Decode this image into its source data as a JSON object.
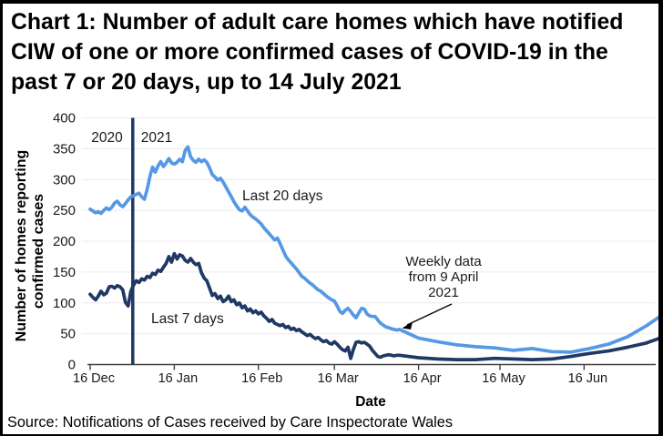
{
  "title": "Chart 1: Number of adult care homes which have notified CIW of one or more confirmed cases of COVID-19 in the past 7 or 20 days, up to 14 July 2021",
  "title_lines": [
    "Chart 1: Number of adult care homes which have notified",
    "CIW of one or more confirmed cases of COVID-19 in the",
    "past 7 or 20 days, up to 14 July 2021"
  ],
  "source": "Source: Notifications of Cases received by Care Inspectorate Wales",
  "chart_data": {
    "type": "line",
    "title": "Chart 1: Number of adult care homes which have notified CIW of one or more confirmed cases of COVID-19 in the past 7 or 20 days, up to 14 July 2021",
    "xlabel": "Date",
    "ylabel": "Number of homes reporting confirmed cases",
    "ylabel_lines": [
      "Number of homes reporting",
      "confirmed cases"
    ],
    "ylim": [
      0,
      400
    ],
    "y_ticks": [
      0,
      50,
      100,
      150,
      200,
      250,
      300,
      350,
      400
    ],
    "x_tick_labels": [
      "16 Dec",
      "16 Jan",
      "16 Feb",
      "16 Mar",
      "16 Apr",
      "16 May",
      "16 Jun"
    ],
    "x_tick_days": [
      0,
      31,
      62,
      90,
      121,
      151,
      182
    ],
    "x_range_days": 210,
    "x_start": "16 Dec 2020",
    "x_end": "14 Jul 2021",
    "grid": true,
    "year_divider_day": 15.7,
    "annotations": {
      "year_left": "2020",
      "year_right": "2021",
      "weekly_note_lines": [
        "Weekly data",
        "from 9 April",
        "2021"
      ]
    },
    "series": [
      {
        "name": "Last 20 days",
        "color": "#5598e5",
        "points": [
          [
            0,
            252
          ],
          [
            1,
            249
          ],
          [
            2,
            246
          ],
          [
            3,
            248
          ],
          [
            4,
            245
          ],
          [
            5,
            250
          ],
          [
            6,
            254
          ],
          [
            7,
            251
          ],
          [
            8,
            255
          ],
          [
            9,
            262
          ],
          [
            10,
            265
          ],
          [
            11,
            259
          ],
          [
            12,
            256
          ],
          [
            13,
            261
          ],
          [
            14,
            267
          ],
          [
            15,
            272
          ],
          [
            16,
            274
          ],
          [
            17,
            276
          ],
          [
            18,
            278
          ],
          [
            19,
            272
          ],
          [
            20,
            268
          ],
          [
            21,
            284
          ],
          [
            22,
            305
          ],
          [
            23,
            320
          ],
          [
            24,
            312
          ],
          [
            25,
            322
          ],
          [
            26,
            329
          ],
          [
            27,
            321
          ],
          [
            28,
            327
          ],
          [
            29,
            334
          ],
          [
            30,
            327
          ],
          [
            31,
            325
          ],
          [
            32,
            328
          ],
          [
            33,
            333
          ],
          [
            34,
            329
          ],
          [
            35,
            347
          ],
          [
            36,
            353
          ],
          [
            37,
            337
          ],
          [
            38,
            331
          ],
          [
            39,
            328
          ],
          [
            40,
            333
          ],
          [
            41,
            329
          ],
          [
            42,
            332
          ],
          [
            43,
            328
          ],
          [
            44,
            319
          ],
          [
            45,
            308
          ],
          [
            46,
            304
          ],
          [
            47,
            299
          ],
          [
            48,
            302
          ],
          [
            49,
            296
          ],
          [
            50,
            288
          ],
          [
            51,
            280
          ],
          [
            52,
            272
          ],
          [
            53,
            264
          ],
          [
            54,
            257
          ],
          [
            55,
            251
          ],
          [
            56,
            249
          ],
          [
            57,
            255
          ],
          [
            58,
            249
          ],
          [
            59,
            243
          ],
          [
            60,
            239
          ],
          [
            61,
            236
          ],
          [
            62,
            232
          ],
          [
            63,
            228
          ],
          [
            64,
            222
          ],
          [
            65,
            217
          ],
          [
            66,
            212
          ],
          [
            67,
            207
          ],
          [
            68,
            202
          ],
          [
            69,
            205
          ],
          [
            70,
            196
          ],
          [
            71,
            186
          ],
          [
            72,
            176
          ],
          [
            73,
            170
          ],
          [
            74,
            165
          ],
          [
            75,
            160
          ],
          [
            76,
            155
          ],
          [
            77,
            149
          ],
          [
            78,
            143
          ],
          [
            79,
            140
          ],
          [
            80,
            136
          ],
          [
            81,
            132
          ],
          [
            82,
            129
          ],
          [
            83,
            125
          ],
          [
            84,
            121
          ],
          [
            85,
            119
          ],
          [
            86,
            115
          ],
          [
            87,
            111
          ],
          [
            88,
            108
          ],
          [
            89,
            105
          ],
          [
            90,
            103
          ],
          [
            91,
            95
          ],
          [
            92,
            86
          ],
          [
            93,
            83
          ],
          [
            94,
            88
          ],
          [
            95,
            91
          ],
          [
            96,
            86
          ],
          [
            97,
            80
          ],
          [
            98,
            76
          ],
          [
            99,
            84
          ],
          [
            100,
            91
          ],
          [
            101,
            90
          ],
          [
            102,
            82
          ],
          [
            103,
            79
          ],
          [
            104,
            78
          ],
          [
            105,
            78
          ],
          [
            106,
            72
          ],
          [
            107,
            67
          ],
          [
            108,
            64
          ],
          [
            109,
            61
          ],
          [
            110,
            60
          ],
          [
            111,
            58
          ],
          [
            112,
            57
          ],
          [
            113,
            56
          ],
          [
            114,
            57
          ],
          [
            121,
            43
          ],
          [
            128,
            37
          ],
          [
            135,
            32
          ],
          [
            142,
            29
          ],
          [
            149,
            27
          ],
          [
            156,
            23
          ],
          [
            163,
            26
          ],
          [
            170,
            21
          ],
          [
            177,
            20
          ],
          [
            184,
            26
          ],
          [
            191,
            33
          ],
          [
            198,
            45
          ],
          [
            205,
            63
          ],
          [
            210,
            78
          ]
        ]
      },
      {
        "name": "Last 7 days",
        "color": "#1f3864",
        "points": [
          [
            0,
            114
          ],
          [
            1,
            109
          ],
          [
            2,
            105
          ],
          [
            3,
            111
          ],
          [
            4,
            119
          ],
          [
            5,
            113
          ],
          [
            6,
            116
          ],
          [
            7,
            126
          ],
          [
            8,
            127
          ],
          [
            9,
            124
          ],
          [
            10,
            128
          ],
          [
            11,
            126
          ],
          [
            12,
            121
          ],
          [
            13,
            101
          ],
          [
            14,
            95
          ],
          [
            15,
            119
          ],
          [
            16,
            129
          ],
          [
            17,
            136
          ],
          [
            18,
            133
          ],
          [
            19,
            139
          ],
          [
            20,
            137
          ],
          [
            21,
            143
          ],
          [
            22,
            141
          ],
          [
            23,
            148
          ],
          [
            24,
            146
          ],
          [
            25,
            153
          ],
          [
            26,
            151
          ],
          [
            27,
            158
          ],
          [
            28,
            164
          ],
          [
            29,
            175
          ],
          [
            30,
            166
          ],
          [
            31,
            180
          ],
          [
            32,
            171
          ],
          [
            33,
            178
          ],
          [
            34,
            176
          ],
          [
            35,
            169
          ],
          [
            36,
            166
          ],
          [
            37,
            172
          ],
          [
            38,
            166
          ],
          [
            39,
            162
          ],
          [
            40,
            164
          ],
          [
            41,
            149
          ],
          [
            42,
            140
          ],
          [
            43,
            136
          ],
          [
            44,
            124
          ],
          [
            45,
            112
          ],
          [
            46,
            115
          ],
          [
            47,
            107
          ],
          [
            48,
            111
          ],
          [
            49,
            102
          ],
          [
            50,
            105
          ],
          [
            51,
            111
          ],
          [
            52,
            102
          ],
          [
            53,
            105
          ],
          [
            54,
            97
          ],
          [
            55,
            100
          ],
          [
            56,
            92
          ],
          [
            57,
            95
          ],
          [
            58,
            87
          ],
          [
            59,
            90
          ],
          [
            60,
            84
          ],
          [
            61,
            87
          ],
          [
            62,
            82
          ],
          [
            63,
            85
          ],
          [
            64,
            79
          ],
          [
            65,
            75
          ],
          [
            66,
            70
          ],
          [
            67,
            73
          ],
          [
            68,
            67
          ],
          [
            69,
            65
          ],
          [
            70,
            63
          ],
          [
            71,
            65
          ],
          [
            72,
            60
          ],
          [
            73,
            62
          ],
          [
            74,
            57
          ],
          [
            75,
            59
          ],
          [
            76,
            55
          ],
          [
            77,
            57
          ],
          [
            78,
            53
          ],
          [
            79,
            50
          ],
          [
            80,
            47
          ],
          [
            81,
            49
          ],
          [
            82,
            45
          ],
          [
            83,
            42
          ],
          [
            84,
            44
          ],
          [
            85,
            40
          ],
          [
            86,
            37
          ],
          [
            87,
            39
          ],
          [
            88,
            35
          ],
          [
            89,
            33
          ],
          [
            90,
            37
          ],
          [
            91,
            33
          ],
          [
            92,
            28
          ],
          [
            93,
            24
          ],
          [
            94,
            22
          ],
          [
            95,
            28
          ],
          [
            96,
            10
          ],
          [
            97,
            25
          ],
          [
            98,
            36
          ],
          [
            99,
            37
          ],
          [
            100,
            35
          ],
          [
            101,
            36
          ],
          [
            102,
            33
          ],
          [
            103,
            30
          ],
          [
            104,
            23
          ],
          [
            105,
            18
          ],
          [
            106,
            13
          ],
          [
            107,
            12
          ],
          [
            108,
            14
          ],
          [
            109,
            15
          ],
          [
            110,
            16
          ],
          [
            111,
            15
          ],
          [
            112,
            14
          ],
          [
            113,
            15
          ],
          [
            114,
            15
          ],
          [
            121,
            11
          ],
          [
            128,
            9
          ],
          [
            135,
            8
          ],
          [
            142,
            8
          ],
          [
            149,
            10
          ],
          [
            156,
            9
          ],
          [
            163,
            8
          ],
          [
            170,
            9
          ],
          [
            177,
            13
          ],
          [
            184,
            18
          ],
          [
            191,
            22
          ],
          [
            198,
            28
          ],
          [
            205,
            35
          ],
          [
            210,
            43
          ]
        ]
      }
    ],
    "series_label_positions": {
      "last20": {
        "x": 263,
        "y": 216
      },
      "last7": {
        "x": 163,
        "y": 351
      }
    },
    "colors": {
      "grid": "#ebebeb",
      "axis": "#404040",
      "tick_text": "#1a1a1a",
      "divider": "#1f3864",
      "annotation_text": "#1a1a1a"
    }
  }
}
